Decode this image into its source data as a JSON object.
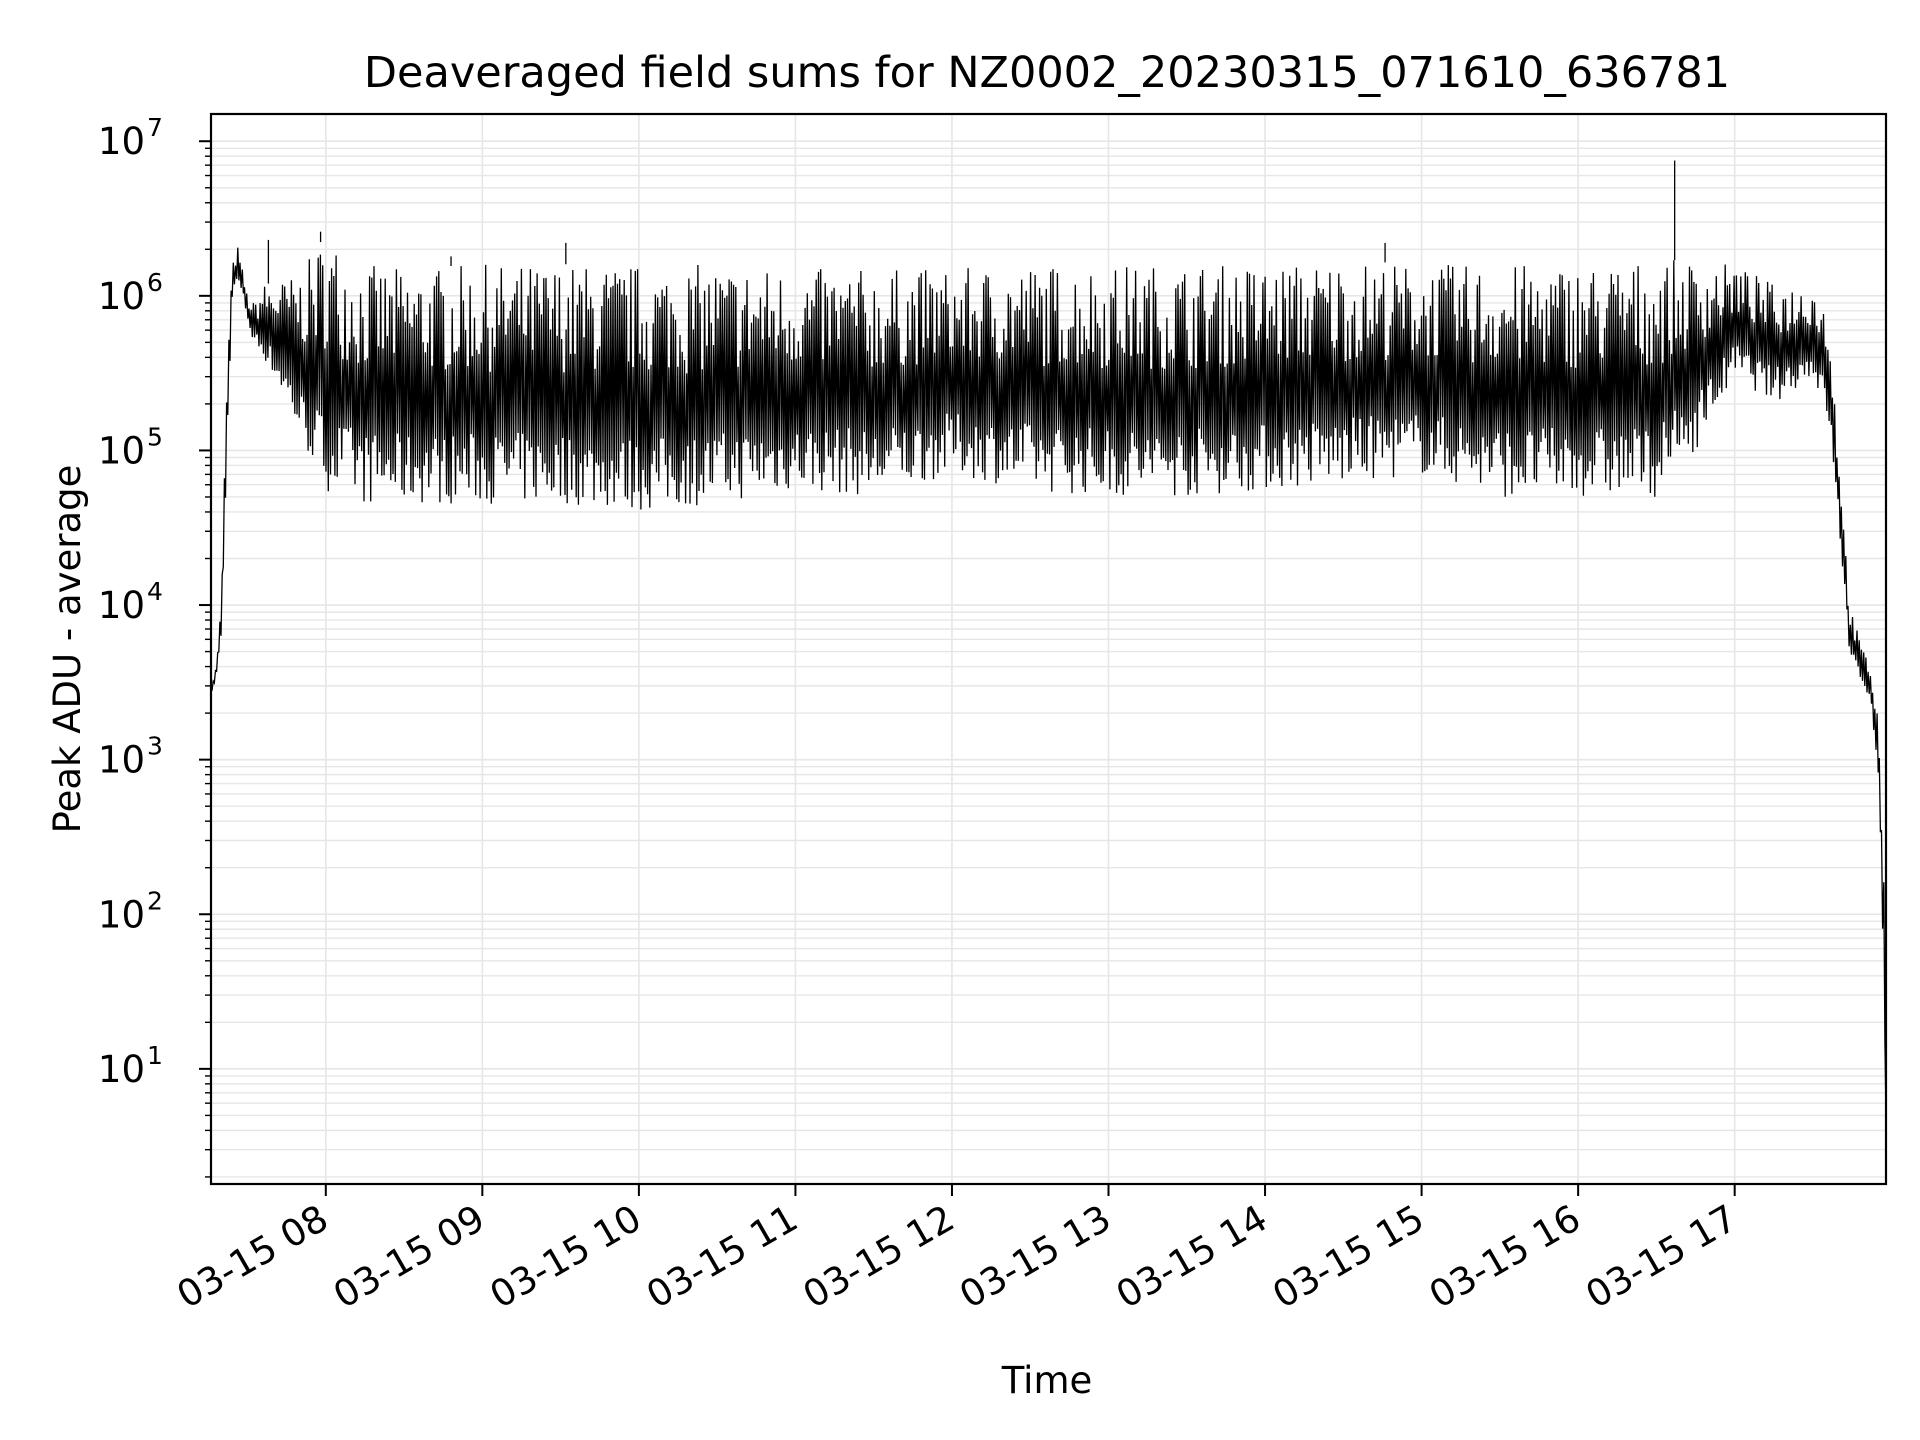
{
  "chart_data": {
    "type": "line",
    "title": "Deaveraged field sums for NZ0002_20230315_071610_636781",
    "xlabel": "Time",
    "ylabel": "Peak ADU - average",
    "yscale": "log",
    "ylim": [
      1.8,
      15000000
    ],
    "xlim": [
      "2023-03-15 07:16",
      "2023-03-15 17:58"
    ],
    "grid": true,
    "line_color": "#000000",
    "grid_color": "#e6e6e6",
    "x_ticks": [
      {
        "value": "2023-03-15 08:00",
        "label": "03-15 08"
      },
      {
        "value": "2023-03-15 09:00",
        "label": "03-15 09"
      },
      {
        "value": "2023-03-15 10:00",
        "label": "03-15 10"
      },
      {
        "value": "2023-03-15 11:00",
        "label": "03-15 11"
      },
      {
        "value": "2023-03-15 12:00",
        "label": "03-15 12"
      },
      {
        "value": "2023-03-15 13:00",
        "label": "03-15 13"
      },
      {
        "value": "2023-03-15 14:00",
        "label": "03-15 14"
      },
      {
        "value": "2023-03-15 15:00",
        "label": "03-15 15"
      },
      {
        "value": "2023-03-15 16:00",
        "label": "03-15 16"
      },
      {
        "value": "2023-03-15 17:00",
        "label": "03-15 17"
      }
    ],
    "y_ticks": [
      {
        "value": 10,
        "base": "10",
        "exp": "1"
      },
      {
        "value": 100,
        "base": "10",
        "exp": "2"
      },
      {
        "value": 1000,
        "base": "10",
        "exp": "3"
      },
      {
        "value": 10000,
        "base": "10",
        "exp": "4"
      },
      {
        "value": 100000,
        "base": "10",
        "exp": "5"
      },
      {
        "value": 1000000,
        "base": "10",
        "exp": "6"
      },
      {
        "value": 10000000,
        "base": "10",
        "exp": "7"
      }
    ],
    "series": [
      {
        "x": [
          "2023-03-15 07:16",
          "2023-03-15 07:18",
          "2023-03-15 07:20",
          "2023-03-15 07:22",
          "2023-03-15 07:24",
          "2023-03-15 07:26",
          "2023-03-15 07:28",
          "2023-03-15 07:30",
          "2023-03-15 07:32",
          "2023-03-15 07:34",
          "2023-03-15 07:36",
          "2023-03-15 07:40",
          "2023-03-15 07:45",
          "2023-03-15 07:50",
          "2023-03-15 08:00",
          "2023-03-15 08:15",
          "2023-03-15 08:30",
          "2023-03-15 09:00",
          "2023-03-15 09:30",
          "2023-03-15 10:00",
          "2023-03-15 10:30",
          "2023-03-15 11:00",
          "2023-03-15 11:30",
          "2023-03-15 12:00",
          "2023-03-15 12:30",
          "2023-03-15 13:00",
          "2023-03-15 13:30",
          "2023-03-15 14:00",
          "2023-03-15 14:30",
          "2023-03-15 15:00",
          "2023-03-15 15:30",
          "2023-03-15 16:00",
          "2023-03-15 16:30",
          "2023-03-15 16:45",
          "2023-03-15 17:00",
          "2023-03-15 17:15",
          "2023-03-15 17:30",
          "2023-03-15 17:36",
          "2023-03-15 17:40",
          "2023-03-15 17:44",
          "2023-03-15 17:48",
          "2023-03-15 17:52",
          "2023-03-15 17:55",
          "2023-03-15 17:57",
          "2023-03-15 17:58"
        ],
        "lower": [
          2500,
          3500,
          6000,
          80000,
          900000,
          1200000,
          1000000,
          700000,
          500000,
          450000,
          400000,
          300000,
          200000,
          120000,
          55000,
          45000,
          45000,
          45000,
          45000,
          40000,
          45000,
          55000,
          50000,
          70000,
          55000,
          50000,
          50000,
          55000,
          60000,
          70000,
          50000,
          50000,
          50000,
          100000,
          300000,
          200000,
          300000,
          150000,
          30000,
          5000,
          3000,
          2500,
          800,
          50,
          4
        ],
        "upper": [
          3000,
          4000,
          11000,
          300000,
          1500000,
          2200000,
          1500000,
          1000000,
          900000,
          1000000,
          1200000,
          1200000,
          1300000,
          1400000,
          2500000,
          1600000,
          1500000,
          1600000,
          1600000,
          1600000,
          1600000,
          1500000,
          1500000,
          1500000,
          1600000,
          1600000,
          1600000,
          1600000,
          1700000,
          1600000,
          1600000,
          1600000,
          1700000,
          1700000,
          1600000,
          1200000,
          1200000,
          800000,
          100000,
          10000,
          6000,
          4000,
          2000,
          300,
          5
        ]
      }
    ],
    "spikes": [
      {
        "x": "2023-03-15 07:38",
        "y": 2300000
      },
      {
        "x": "2023-03-15 07:58",
        "y": 2600000
      },
      {
        "x": "2023-03-15 08:48",
        "y": 1800000
      },
      {
        "x": "2023-03-15 09:32",
        "y": 2200000
      },
      {
        "x": "2023-03-15 14:46",
        "y": 2200000
      },
      {
        "x": "2023-03-15 16:37",
        "y": 7500000
      }
    ]
  }
}
